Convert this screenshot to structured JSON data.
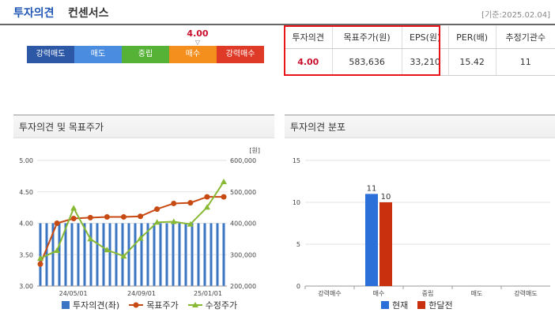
{
  "header": {
    "title_blue": "투자의견",
    "title_black": "컨센서스",
    "as_of": "[기준:2025.02.04]"
  },
  "opinion_scale": {
    "current_value": "4.00",
    "marker_arrow": "▽",
    "levels": [
      {
        "label": "강력매도",
        "color": "#2c58a6"
      },
      {
        "label": "매도",
        "color": "#4a8de0"
      },
      {
        "label": "중립",
        "color": "#56b236"
      },
      {
        "label": "매수",
        "color": "#f48f1e"
      },
      {
        "label": "강력매수",
        "color": "#de3a27"
      }
    ]
  },
  "consensus_table": {
    "headers": [
      "투자의견",
      "목표주가(원)",
      "EPS(원)",
      "PER(배)",
      "추정기관수"
    ],
    "row": [
      "4.00",
      "583,636",
      "33,210",
      "15.42",
      "11"
    ]
  },
  "left_panel": {
    "title": "투자의견 및 목표주가"
  },
  "right_panel": {
    "title": "투자의견 분포"
  },
  "chart_data": [
    {
      "type": "bar+line",
      "title": "투자의견 및 목표주가",
      "x_tick_labels": [
        "24/05/01",
        "24/09/01",
        "25/01/01"
      ],
      "y_left": {
        "ticks": [
          "3.00",
          "3.50",
          "4.00",
          "4.50",
          "5.00"
        ],
        "range": [
          3.0,
          5.0
        ]
      },
      "y_right": {
        "unit": "[원]",
        "ticks": [
          "200,000",
          "300,000",
          "400,000",
          "500,000",
          "600,000"
        ],
        "range": [
          200000,
          600000
        ]
      },
      "series": [
        {
          "name": "투자의견(좌)",
          "kind": "bar",
          "axis": "left",
          "color": "#3a75c4",
          "values": [
            4,
            4,
            4,
            4,
            4,
            4,
            4,
            4,
            4,
            4,
            4,
            4,
            4,
            4,
            4,
            4,
            4,
            4,
            4,
            4,
            4,
            4,
            4,
            4,
            4,
            4,
            4,
            4,
            4,
            4
          ]
        },
        {
          "name": "목표주가",
          "kind": "line",
          "axis": "right",
          "color": "#c84a13",
          "values": [
            270000,
            400000,
            415000,
            418000,
            420000,
            420000,
            422000,
            445000,
            463000,
            465000,
            484000,
            484000
          ]
        },
        {
          "name": "수정주가",
          "kind": "line",
          "axis": "right",
          "color": "#88b934",
          "values": [
            288000,
            313000,
            448000,
            350000,
            315000,
            295000,
            352000,
            403000,
            405000,
            397000,
            451000,
            532000
          ]
        }
      ]
    },
    {
      "type": "bar",
      "title": "투자의견 분포",
      "categories": [
        "강력매수",
        "매수",
        "중립",
        "매도",
        "강력매도"
      ],
      "y_ticks": [
        "0",
        "5",
        "10",
        "15"
      ],
      "ylim": [
        0,
        15
      ],
      "series": [
        {
          "name": "현재",
          "color": "#2b6fd8",
          "values": [
            0,
            11,
            0,
            0,
            0
          ]
        },
        {
          "name": "한달전",
          "color": "#c9300e",
          "values": [
            0,
            10,
            0,
            0,
            0
          ]
        }
      ],
      "data_labels": [
        "11",
        "10"
      ]
    }
  ]
}
